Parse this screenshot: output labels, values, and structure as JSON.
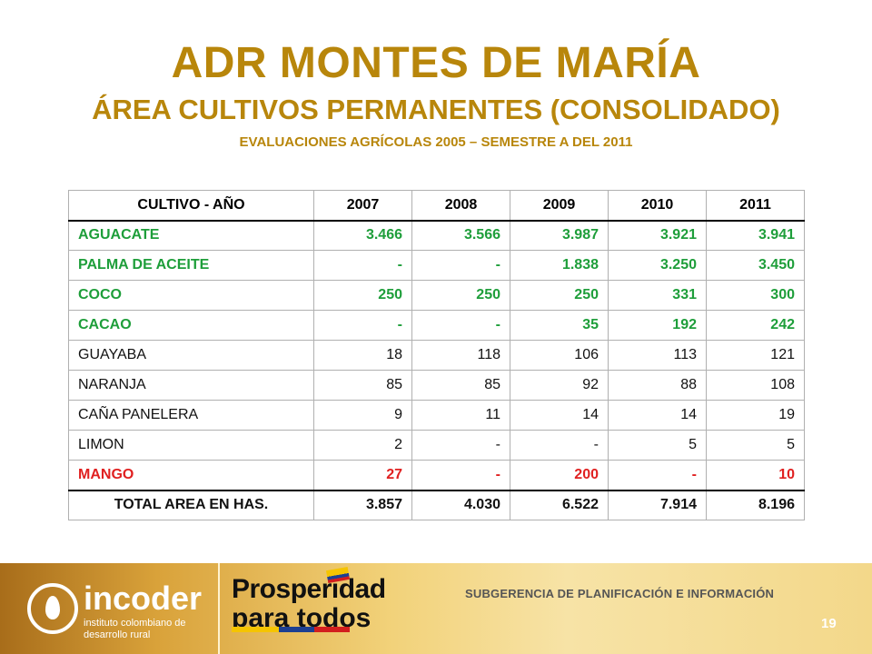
{
  "header": {
    "title": "ADR MONTES DE MARÍA",
    "subtitle": "ÁREA CULTIVOS PERMANENTES (CONSOLIDADO)",
    "subtitle2": "EVALUACIONES AGRÍCOLAS 2005 – SEMESTRE A DEL 2011"
  },
  "table": {
    "columns": [
      "CULTIVO  - AÑO",
      "2007",
      "2008",
      "2009",
      "2010",
      "2011"
    ],
    "rows": [
      {
        "crop": "AGUACATE",
        "values": [
          "3.466",
          "3.566",
          "3.987",
          "3.921",
          "3.941"
        ],
        "color": "#1e9e3a"
      },
      {
        "crop": "PALMA DE ACEITE",
        "values": [
          "-",
          "-",
          "1.838",
          "3.250",
          "3.450"
        ],
        "color": "#1e9e3a"
      },
      {
        "crop": "COCO",
        "values": [
          "250",
          "250",
          "250",
          "331",
          "300"
        ],
        "color": "#1e9e3a"
      },
      {
        "crop": "CACAO",
        "values": [
          "-",
          "-",
          "35",
          "192",
          "242"
        ],
        "color": "#1e9e3a"
      },
      {
        "crop": "GUAYABA",
        "values": [
          "18",
          "118",
          "106",
          "113",
          "121"
        ],
        "color": "#111111"
      },
      {
        "crop": "NARANJA",
        "values": [
          "85",
          "85",
          "92",
          "88",
          "108"
        ],
        "color": "#111111"
      },
      {
        "crop": "CAÑA PANELERA",
        "values": [
          "9",
          "11",
          "14",
          "14",
          "19"
        ],
        "color": "#111111"
      },
      {
        "crop": "LIMON",
        "values": [
          "2",
          "-",
          "-",
          "5",
          "5"
        ],
        "color": "#111111"
      },
      {
        "crop": "MANGO",
        "values": [
          "27",
          "-",
          "200",
          "-",
          "10"
        ],
        "color": "#e02020"
      }
    ],
    "total": {
      "crop": "TOTAL AREA EN HAS.",
      "values": [
        "3.857",
        "4.030",
        "6.522",
        "7.914",
        "8.196"
      ]
    }
  },
  "footer": {
    "logo_name": "incoder",
    "logo_sub": "instituto colombiano de desarrollo rural",
    "slogan_line1": "Prosperidad",
    "slogan_line2": "para todos",
    "department": "SUBGERENCIA DE PLANIFICACIÓN E INFORMACIÓN",
    "page_number": "19"
  }
}
